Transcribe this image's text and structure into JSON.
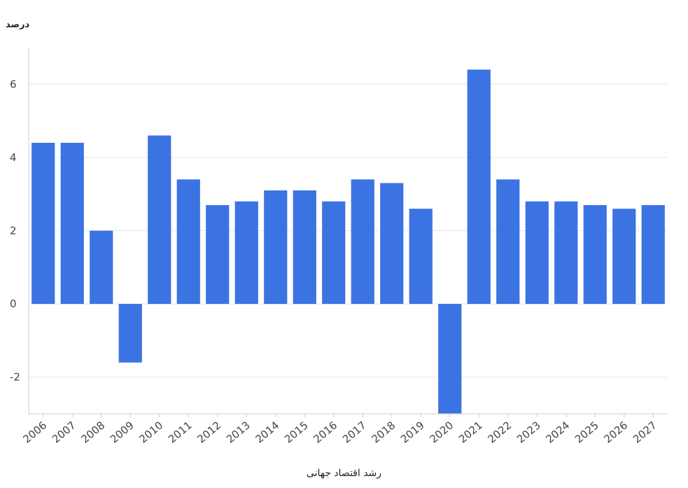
{
  "chart_data": {
    "type": "bar",
    "xlabel": "رشد اقتصاد جهانی",
    "ylabel": "درصد",
    "categories": [
      "2006",
      "2007",
      "2008",
      "2009",
      "2010",
      "2011",
      "2012",
      "2013",
      "2014",
      "2015",
      "2016",
      "2017",
      "2018",
      "2019",
      "2020",
      "2021",
      "2022",
      "2023",
      "2024",
      "2025",
      "2026",
      "2027"
    ],
    "values": [
      4.4,
      4.4,
      2.0,
      -1.6,
      4.6,
      3.4,
      2.7,
      2.8,
      3.1,
      3.1,
      2.8,
      3.4,
      3.3,
      2.6,
      -3.0,
      6.4,
      3.4,
      2.8,
      2.8,
      2.7,
      2.6,
      2.7
    ],
    "yticks": [
      -2,
      0,
      2,
      4,
      6
    ],
    "ylim": [
      -3.0,
      7.0
    ],
    "grid": true,
    "bar_color": "#3b73e3",
    "grid_color": "#e6e6e6",
    "axis_color": "#cccccc",
    "text_color": "#444444"
  }
}
